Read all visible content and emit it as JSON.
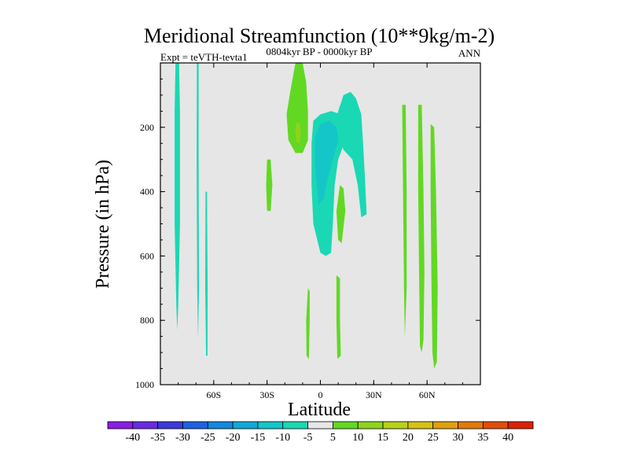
{
  "chart_data": {
    "type": "heatmap",
    "title": "Meridional Streamfunction (10**9kg/m-2)",
    "left_label": "Expt = teVTH-tevta1",
    "center_label": "0804kyr BP - 0000kyr BP",
    "right_label": "ANN",
    "xlabel": "Latitude",
    "ylabel": "Pressure (in hPa)",
    "xlim": [
      -90,
      90
    ],
    "ylim": [
      1000,
      0
    ],
    "x_ticks": [
      {
        "value": -60,
        "label": "60S"
      },
      {
        "value": -30,
        "label": "30S"
      },
      {
        "value": 0,
        "label": "0"
      },
      {
        "value": 30,
        "label": "30N"
      },
      {
        "value": 60,
        "label": "60N"
      }
    ],
    "y_ticks": [
      {
        "value": 200,
        "label": "200"
      },
      {
        "value": 400,
        "label": "400"
      },
      {
        "value": 600,
        "label": "600"
      },
      {
        "value": 800,
        "label": "800"
      },
      {
        "value": 1000,
        "label": "1000"
      }
    ],
    "background_color": "#e6e6e6",
    "colorbar": {
      "labels": [
        "-40",
        "-35",
        "-30",
        "-25",
        "-20",
        "-15",
        "-10",
        "-5",
        "5",
        "10",
        "15",
        "20",
        "25",
        "30",
        "35",
        "40"
      ],
      "colors": [
        "#8a1de3",
        "#6a2be0",
        "#3b3ad8",
        "#1f62de",
        "#1388dd",
        "#12a8d6",
        "#14c6c8",
        "#1ad8b4",
        "#e6e6e6",
        "#62d823",
        "#8fd41c",
        "#b8d01a",
        "#d6c114",
        "#dea00f",
        "#e07a0c",
        "#e04e09",
        "#dc2206"
      ]
    },
    "regions": [
      {
        "label": "-5",
        "color": "#1ad8b4",
        "points": [
          [
            -81.5,
            0
          ],
          [
            -79.5,
            0
          ],
          [
            -79,
            150
          ],
          [
            -79,
            500
          ],
          [
            -80,
            760
          ],
          [
            -80.5,
            830
          ],
          [
            -81,
            760
          ],
          [
            -82,
            500
          ],
          [
            -82,
            150
          ]
        ]
      },
      {
        "label": "-5",
        "color": "#1ad8b4",
        "points": [
          [
            -69.5,
            0
          ],
          [
            -68.5,
            0
          ],
          [
            -68.5,
            300
          ],
          [
            -68.3,
            700
          ],
          [
            -68.8,
            860
          ],
          [
            -69.3,
            700
          ],
          [
            -69.6,
            300
          ]
        ]
      },
      {
        "label": "-5",
        "color": "#1ad8b4",
        "points": [
          [
            -64.6,
            400
          ],
          [
            -63.8,
            400
          ],
          [
            -63.4,
            700
          ],
          [
            -63.5,
            910
          ],
          [
            -64.3,
            910
          ],
          [
            -64.8,
            700
          ]
        ]
      },
      {
        "label": "-5",
        "color": "#1ad8b4",
        "points": [
          [
            -4,
            180
          ],
          [
            0,
            160
          ],
          [
            6,
            150
          ],
          [
            12,
            160
          ],
          [
            14,
            240
          ],
          [
            10,
            300
          ],
          [
            8,
            380
          ],
          [
            7,
            500
          ],
          [
            6,
            590
          ],
          [
            3,
            600
          ],
          [
            0,
            590
          ],
          [
            -4,
            500
          ],
          [
            -5,
            380
          ],
          [
            -5,
            250
          ]
        ]
      },
      {
        "label": "-5",
        "color": "#1ad8b4",
        "points": [
          [
            9,
            200
          ],
          [
            10,
            150
          ],
          [
            13,
            100
          ],
          [
            17,
            90
          ],
          [
            20,
            110
          ],
          [
            23,
            160
          ],
          [
            24,
            250
          ],
          [
            25,
            350
          ],
          [
            26,
            470
          ],
          [
            23,
            480
          ],
          [
            21,
            380
          ],
          [
            18,
            300
          ],
          [
            13,
            270
          ],
          [
            11,
            240
          ]
        ]
      },
      {
        "label": "-10",
        "color": "#14c6c8",
        "points": [
          [
            -3,
            230
          ],
          [
            0,
            190
          ],
          [
            5,
            180
          ],
          [
            9,
            200
          ],
          [
            10,
            240
          ],
          [
            7,
            300
          ],
          [
            4,
            360
          ],
          [
            2,
            420
          ],
          [
            -1,
            440
          ],
          [
            -2,
            380
          ],
          [
            -3,
            320
          ]
        ]
      },
      {
        "label": "5",
        "color": "#62d823",
        "points": [
          [
            -14,
            0
          ],
          [
            -10,
            0
          ],
          [
            -8,
            60
          ],
          [
            -7,
            150
          ],
          [
            -7,
            240
          ],
          [
            -10,
            280
          ],
          [
            -14,
            280
          ],
          [
            -18,
            240
          ],
          [
            -19,
            160
          ],
          [
            -17,
            90
          ]
        ]
      },
      {
        "label": "10",
        "color": "#8fd41c",
        "points": [
          [
            -13.5,
            185
          ],
          [
            -11.5,
            190
          ],
          [
            -11,
            220
          ],
          [
            -12,
            250
          ],
          [
            -13.5,
            245
          ],
          [
            -14,
            210
          ]
        ]
      },
      {
        "label": "5",
        "color": "#62d823",
        "points": [
          [
            -30,
            300
          ],
          [
            -28,
            300
          ],
          [
            -27,
            380
          ],
          [
            -28,
            460
          ],
          [
            -30,
            460
          ],
          [
            -30.5,
            380
          ]
        ]
      },
      {
        "label": "5",
        "color": "#62d823",
        "points": [
          [
            11,
            380
          ],
          [
            13,
            390
          ],
          [
            14,
            460
          ],
          [
            12,
            560
          ],
          [
            10,
            550
          ],
          [
            9,
            460
          ]
        ]
      },
      {
        "label": "5",
        "color": "#62d823",
        "points": [
          [
            -7,
            700
          ],
          [
            -6,
            710
          ],
          [
            -6,
            800
          ],
          [
            -6.5,
            920
          ],
          [
            -7.8,
            910
          ],
          [
            -8,
            800
          ]
        ]
      },
      {
        "label": "5",
        "color": "#62d823",
        "points": [
          [
            9,
            660
          ],
          [
            11,
            670
          ],
          [
            11,
            800
          ],
          [
            11.5,
            910
          ],
          [
            9.5,
            920
          ],
          [
            9,
            800
          ]
        ]
      },
      {
        "label": "5",
        "color": "#62d823",
        "points": [
          [
            46,
            130
          ],
          [
            48,
            130
          ],
          [
            48.5,
            400
          ],
          [
            48.5,
            700
          ],
          [
            47.5,
            850
          ],
          [
            47,
            700
          ],
          [
            46.5,
            400
          ]
        ]
      },
      {
        "label": "5",
        "color": "#62d823",
        "points": [
          [
            55,
            130
          ],
          [
            57,
            130
          ],
          [
            58,
            400
          ],
          [
            58.5,
            650
          ],
          [
            58,
            860
          ],
          [
            57,
            900
          ],
          [
            56,
            880
          ],
          [
            55.5,
            650
          ],
          [
            55,
            400
          ]
        ]
      },
      {
        "label": "5",
        "color": "#62d823",
        "points": [
          [
            62,
            190
          ],
          [
            64,
            200
          ],
          [
            65,
            400
          ],
          [
            66,
            700
          ],
          [
            65.5,
            930
          ],
          [
            64,
            950
          ],
          [
            63,
            900
          ],
          [
            62.5,
            700
          ],
          [
            62,
            400
          ]
        ]
      }
    ]
  }
}
